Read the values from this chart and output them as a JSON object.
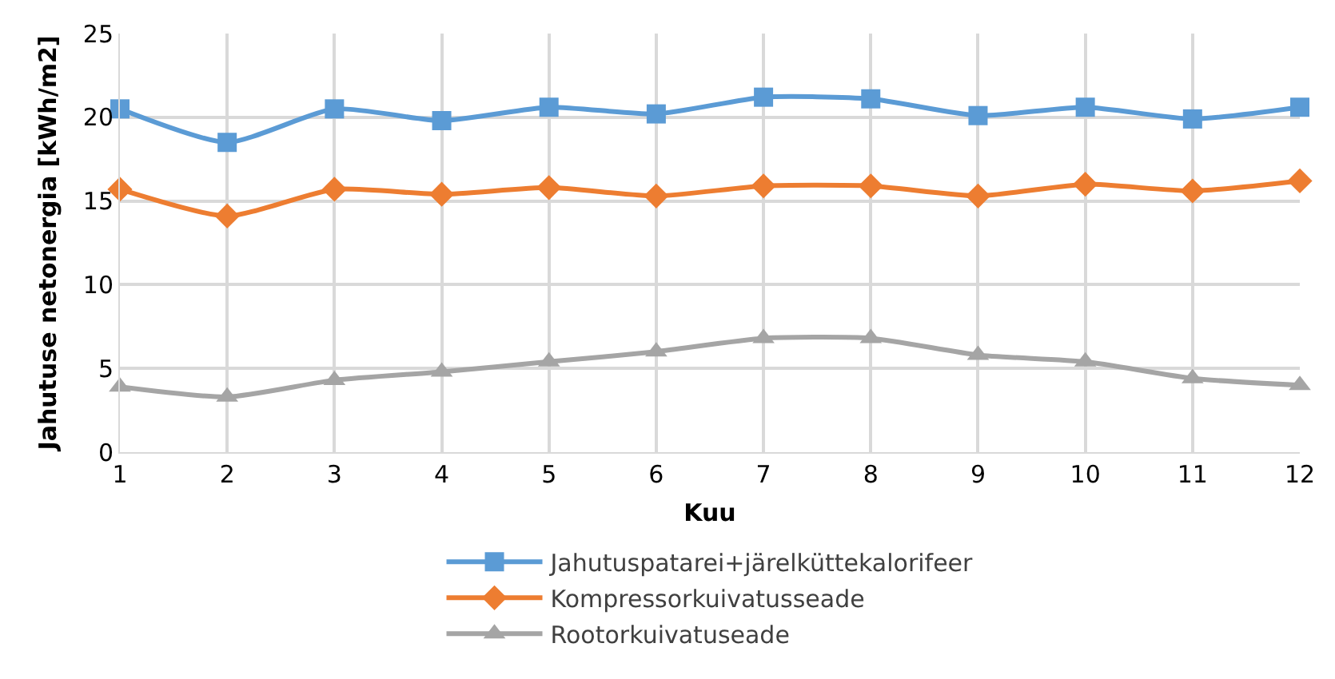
{
  "chart_data": {
    "type": "line",
    "xlabel": "Kuu",
    "ylabel": "Jahutuse netonergia [kWh/m2]",
    "x": [
      1,
      2,
      3,
      4,
      5,
      6,
      7,
      8,
      9,
      10,
      11,
      12
    ],
    "xlim": [
      1,
      12
    ],
    "xticks": [
      1,
      2,
      3,
      4,
      5,
      6,
      7,
      8,
      9,
      10,
      11,
      12
    ],
    "ylim": [
      0,
      25
    ],
    "yticks": [
      0,
      5,
      10,
      15,
      20,
      25
    ],
    "grid": true,
    "legend": "bottom",
    "series": [
      {
        "name": "Jahutuspatarei+järelküttekalorifeer",
        "color": "#5b9bd5",
        "marker": "square",
        "values": [
          20.5,
          18.5,
          20.5,
          19.8,
          20.6,
          20.2,
          21.2,
          21.1,
          20.1,
          20.6,
          19.9,
          20.6
        ]
      },
      {
        "name": "Kompressorkuivatusseade",
        "color": "#ed7d31",
        "marker": "diamond",
        "values": [
          15.7,
          14.1,
          15.7,
          15.4,
          15.8,
          15.3,
          15.9,
          15.9,
          15.3,
          16.0,
          15.6,
          16.2
        ]
      },
      {
        "name": "Rootorkuivatuseade",
        "color": "#a5a5a5",
        "marker": "triangle",
        "values": [
          3.9,
          3.3,
          4.3,
          4.8,
          5.4,
          6.0,
          6.8,
          6.8,
          5.8,
          5.4,
          4.4,
          4.0
        ]
      }
    ]
  }
}
